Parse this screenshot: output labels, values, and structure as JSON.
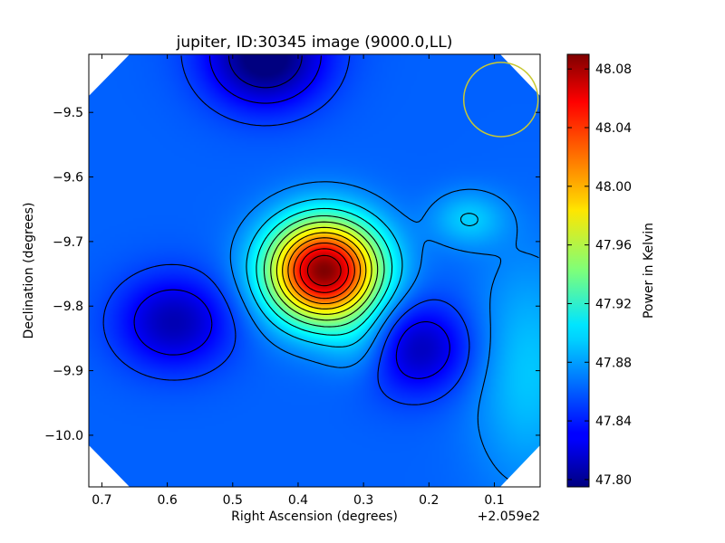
{
  "chart_data": {
    "type": "heatmap",
    "title": "jupiter, ID:30345 image (9000.0,LL)",
    "xlabel": "Right Ascension (degrees)",
    "ylabel": "Declination (degrees)",
    "x_offset_label": "+2.059e2",
    "xlim": [
      0.72,
      0.03
    ],
    "ylim": [
      -10.08,
      -9.41
    ],
    "xticks": [
      0.7,
      0.6,
      0.5,
      0.4,
      0.3,
      0.2,
      0.1
    ],
    "xtick_labels": [
      "0.7",
      "0.6",
      "0.5",
      "0.4",
      "0.3",
      "0.2",
      "0.1"
    ],
    "yticks": [
      -9.5,
      -9.6,
      -9.7,
      -9.8,
      -9.9,
      -10.0
    ],
    "ytick_labels": [
      "−9.5",
      "−9.6",
      "−9.7",
      "−9.8",
      "−9.9",
      "−10.0"
    ],
    "colorbar": {
      "label": "Power in Kelvin",
      "min": 47.795,
      "max": 48.09,
      "ticks": [
        47.8,
        47.84,
        47.88,
        47.92,
        47.96,
        48.0,
        48.04,
        48.08
      ],
      "tick_labels": [
        "47.80",
        "47.84",
        "47.88",
        "47.92",
        "47.96",
        "48.00",
        "48.04",
        "48.08"
      ],
      "colormap": "jet"
    },
    "features": [
      {
        "kind": "peak",
        "ra": 0.36,
        "dec": -9.745,
        "value": 48.09
      },
      {
        "kind": "minimum",
        "ra": 0.59,
        "dec": -9.825,
        "value": 47.81
      },
      {
        "kind": "minimum",
        "ra": 0.22,
        "dec": -9.865,
        "value": 47.81
      },
      {
        "kind": "minimum",
        "ra": 0.45,
        "dec": -9.42,
        "value": 47.8
      },
      {
        "kind": "local-max",
        "ra": 0.14,
        "dec": -9.665,
        "value": 47.89
      }
    ],
    "beam_circle": {
      "ra": 0.09,
      "dec": -9.48,
      "color": "#c8c832"
    }
  }
}
